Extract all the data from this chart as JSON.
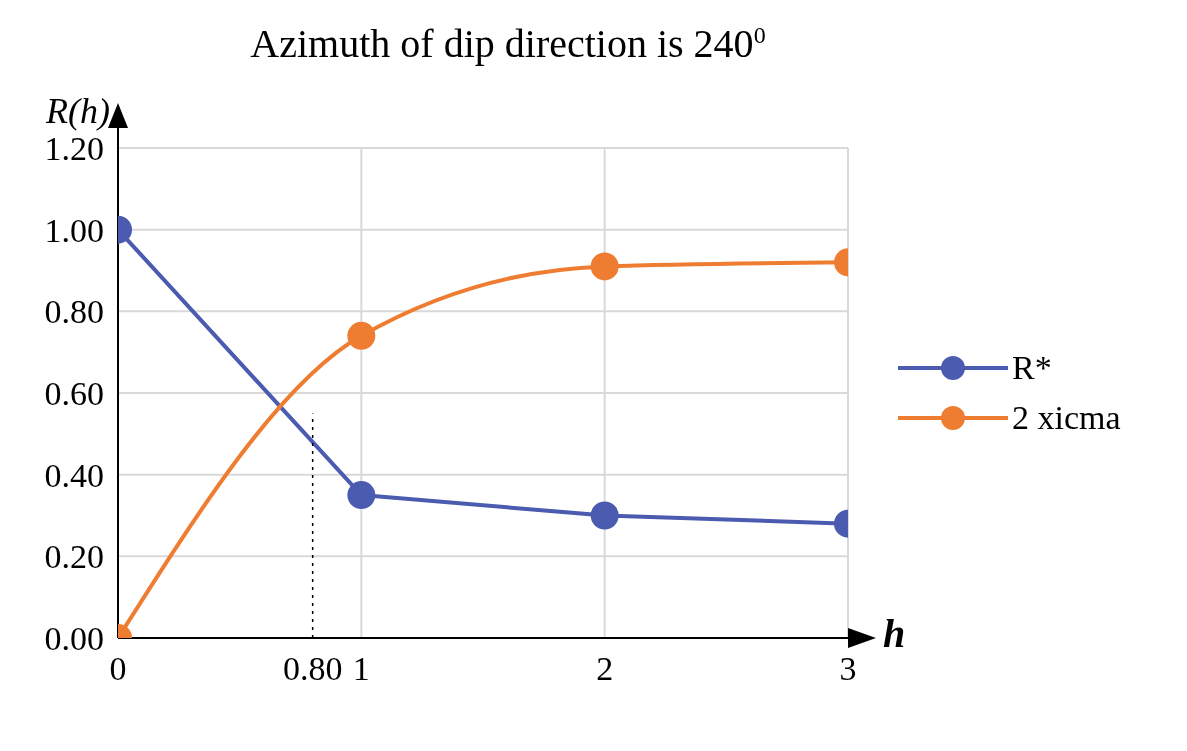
{
  "chart_data": {
    "type": "line",
    "title": "Azimuth of dip direction is 240$^{0}$",
    "xlabel": "h",
    "ylabel": "R(h)",
    "xlim": [
      0,
      3
    ],
    "xticks": [
      0,
      {
        "value": 0.8,
        "label": "0.80"
      },
      1,
      2,
      3
    ],
    "ylim": [
      0,
      1.2
    ],
    "yticks": [
      {
        "value": 0,
        "label": "0.00"
      },
      {
        "value": 0.2,
        "label": "0.20"
      },
      {
        "value": 0.4,
        "label": "0.40"
      },
      {
        "value": 0.6,
        "label": "0.60"
      },
      {
        "value": 0.8,
        "label": "0.80"
      },
      {
        "value": 1,
        "label": "1.00"
      },
      {
        "value": 1.2,
        "label": "1.20"
      }
    ],
    "grid": true,
    "legend": "right",
    "marker": "circle",
    "line_style": "solid",
    "series": [
      {
        "name": "R*",
        "color": "#4a5bb0",
        "x": [
          0,
          1,
          2,
          3
        ],
        "values": [
          1.0,
          0.35,
          0.3,
          0.28
        ]
      },
      {
        "name": "2 xicma",
        "color": "#ee7d31",
        "x": [
          0,
          1,
          2,
          3
        ],
        "values": [
          0,
          0.74,
          0.91,
          0.92
        ]
      },
      {
        "type": "line",
        "color": "#000000",
        "x": [
          0.8,
          0.8
        ],
        "values": [
          0,
          0.55
        ],
        "marker": "none",
        "line_style": "dotted"
      }
    ]
  }
}
